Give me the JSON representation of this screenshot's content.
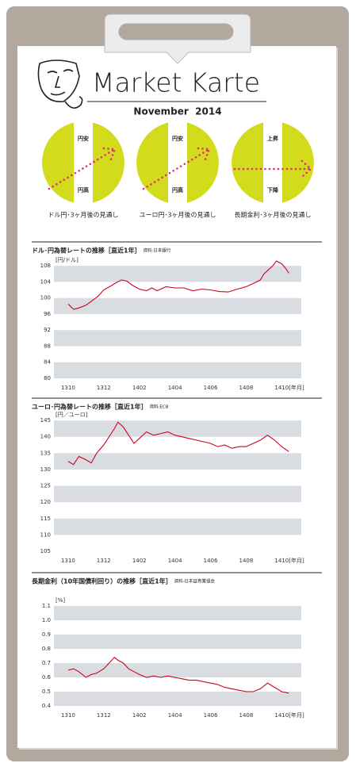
{
  "header": {
    "title": "Market Karte",
    "subtitle": "November  2014"
  },
  "outlooks": [
    {
      "top": "円安",
      "bottom": "円高",
      "caption": "ドル円･3ヶ月後の見通し"
    },
    {
      "top": "円安",
      "bottom": "円高",
      "caption": "ユーロ円･3ヶ月後の見通し"
    },
    {
      "top": "上昇",
      "bottom": "下降",
      "caption": "長期金利･3ヶ月後の見通し"
    }
  ],
  "chart_data": [
    {
      "type": "line",
      "title": "ドル･円為替レートの推移［直近1年］",
      "source": "資料:日本銀行",
      "y_unit": "[円/ドル]",
      "x_unit": "[年月]",
      "color": "#d0021b",
      "x": [
        0,
        0.3,
        0.6,
        1,
        1.4,
        1.7,
        2,
        2.4,
        2.7,
        3,
        3.3,
        3.6,
        4,
        4.4,
        4.7,
        5,
        5.5,
        6,
        6.5,
        7,
        7.5,
        8,
        8.5,
        9,
        9.5,
        10,
        10.5,
        10.8,
        11,
        11.3,
        11.5,
        11.7,
        12,
        12.2,
        12.4
      ],
      "values": [
        98.5,
        97.2,
        97.5,
        98.2,
        99.5,
        100.5,
        102,
        103,
        103.8,
        104.5,
        104.2,
        103.2,
        102.2,
        101.8,
        102.5,
        101.8,
        102.8,
        102.5,
        102.5,
        101.8,
        102.2,
        102,
        101.6,
        101.5,
        102.2,
        102.8,
        103.8,
        104.5,
        106,
        107.2,
        108,
        109.2,
        108.5,
        107.5,
        106.2
      ],
      "xlim": [
        -0.8,
        13.1
      ],
      "ylim": [
        80,
        110
      ],
      "xticks": [
        {
          "value": 0,
          "label": "1310"
        },
        {
          "value": 2,
          "label": "1312"
        },
        {
          "value": 4,
          "label": "1402"
        },
        {
          "value": 6,
          "label": "1404"
        },
        {
          "value": 8,
          "label": "1406"
        },
        {
          "value": 10,
          "label": "1408"
        },
        {
          "value": 12,
          "label": "1410"
        }
      ],
      "yticks": [
        80,
        84,
        88,
        92,
        96,
        100,
        104,
        108
      ]
    },
    {
      "type": "line",
      "title": "ユーロ･円為替レートの推移［直近1年］",
      "source": "資料:ECB",
      "y_unit": "[円／ユーロ]",
      "x_unit": "[年月]",
      "color": "#d0021b",
      "x": [
        0,
        0.3,
        0.6,
        1,
        1.3,
        1.6,
        2,
        2.3,
        2.6,
        2.8,
        3.1,
        3.4,
        3.7,
        4,
        4.4,
        4.8,
        5.2,
        5.6,
        6,
        6.4,
        6.8,
        7.2,
        7.6,
        8,
        8.4,
        8.8,
        9.2,
        9.6,
        10,
        10.4,
        10.8,
        11.2,
        11.6,
        12,
        12.4
      ],
      "values": [
        132.5,
        131.5,
        134,
        133,
        132,
        135,
        137.5,
        140,
        142.5,
        144.5,
        143,
        140.5,
        138,
        139.5,
        141.5,
        140.5,
        141,
        141.5,
        140.5,
        140,
        139.5,
        139,
        138.5,
        138,
        137,
        137.5,
        136.5,
        137,
        137,
        138,
        139,
        140.5,
        139,
        137,
        135.5
      ],
      "xlim": [
        -0.8,
        13.1
      ],
      "ylim": [
        105,
        146
      ],
      "xticks": [
        {
          "value": 0,
          "label": "1310"
        },
        {
          "value": 2,
          "label": "1312"
        },
        {
          "value": 4,
          "label": "1402"
        },
        {
          "value": 6,
          "label": "1404"
        },
        {
          "value": 8,
          "label": "1406"
        },
        {
          "value": 10,
          "label": "1408"
        },
        {
          "value": 12,
          "label": "1410"
        }
      ],
      "yticks": [
        105,
        110,
        115,
        120,
        125,
        130,
        135,
        140,
        145
      ]
    },
    {
      "type": "line",
      "title": "長期金利（10年国債利回り）の推移［直近1年］",
      "source": "資料:日本証券業協会",
      "y_unit": "[%]",
      "x_unit": "[年月]",
      "color": "#d0021b",
      "x": [
        0,
        0.3,
        0.6,
        1,
        1.3,
        1.6,
        2,
        2.3,
        2.6,
        2.8,
        3.1,
        3.4,
        3.7,
        4,
        4.4,
        4.8,
        5.2,
        5.6,
        6,
        6.4,
        6.8,
        7.2,
        7.6,
        8,
        8.4,
        8.8,
        9.2,
        9.6,
        10,
        10.4,
        10.8,
        11.2,
        11.6,
        12,
        12.4
      ],
      "values": [
        0.65,
        0.66,
        0.64,
        0.6,
        0.62,
        0.63,
        0.66,
        0.7,
        0.74,
        0.72,
        0.7,
        0.66,
        0.64,
        0.62,
        0.6,
        0.61,
        0.6,
        0.61,
        0.6,
        0.59,
        0.58,
        0.58,
        0.57,
        0.56,
        0.55,
        0.53,
        0.52,
        0.51,
        0.5,
        0.5,
        0.52,
        0.56,
        0.53,
        0.5,
        0.49
      ],
      "xlim": [
        -0.8,
        13.1
      ],
      "ylim": [
        0.4,
        1.15
      ],
      "xticks": [
        {
          "value": 0,
          "label": "1310"
        },
        {
          "value": 2,
          "label": "1312"
        },
        {
          "value": 4,
          "label": "1402"
        },
        {
          "value": 6,
          "label": "1404"
        },
        {
          "value": 8,
          "label": "1406"
        },
        {
          "value": 10,
          "label": "1408"
        },
        {
          "value": 12,
          "label": "1410"
        }
      ],
      "yticks": [
        0.4,
        0.5,
        0.6,
        0.7,
        0.8,
        0.9,
        {
          "value": 1,
          "label": "1.0"
        },
        1.1
      ]
    }
  ]
}
